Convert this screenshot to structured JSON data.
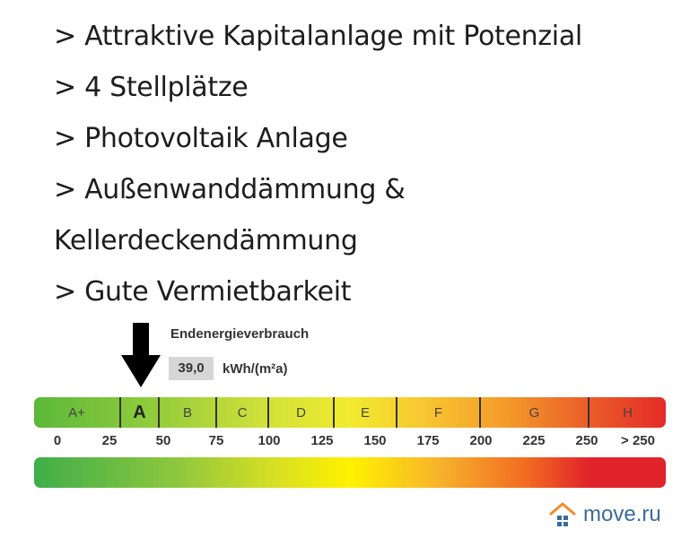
{
  "bullets": [
    "> Attraktive Kapitalanlage mit Potenzial",
    "> 4 Stellplätze",
    "> Photovoltaik Anlage",
    "> Außenwanddämmung &",
    "Kellerdeckendämmung",
    "> Gute Vermietbarkeit"
  ],
  "energy": {
    "title": "Endenergieverbrauch",
    "value": "39,0",
    "unit": "kWh/(m²a)",
    "classes": [
      "A+",
      "A",
      "B",
      "C",
      "D",
      "E",
      "F",
      "G",
      "H"
    ],
    "active_class": "A",
    "scale": [
      "0",
      "25",
      "50",
      "75",
      "100",
      "125",
      "150",
      "175",
      "200",
      "225",
      "250",
      "> 250"
    ]
  },
  "watermark": {
    "text": "move.ru",
    "icon": "house-icon",
    "color": "#3a6c9a",
    "accent": "#f28b2c"
  }
}
